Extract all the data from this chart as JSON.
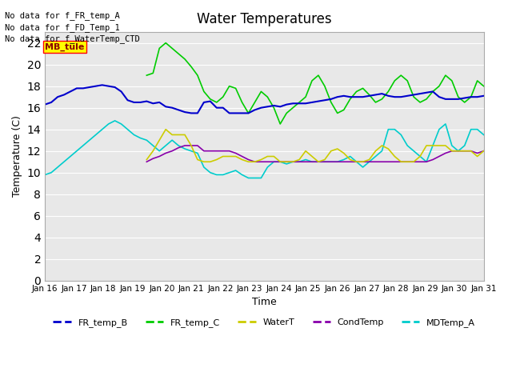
{
  "title": "Water Temperatures",
  "xlabel": "Time",
  "ylabel": "Temperature (C)",
  "ylim": [
    0,
    23
  ],
  "yticks": [
    0,
    2,
    4,
    6,
    8,
    10,
    12,
    14,
    16,
    18,
    20,
    22
  ],
  "xlabels": [
    "Jan 16",
    "Jan 17",
    "Jan 18",
    "Jan 19",
    "Jan 20",
    "Jan 21",
    "Jan 22",
    "Jan 23",
    "Jan 24",
    "Jan 25",
    "Jan 26",
    "Jan 27",
    "Jan 28",
    "Jan 29",
    "Jan 30",
    "Jan 31"
  ],
  "no_data_text": [
    "No data for f_FR_temp_A",
    "No data for f_FD_Temp_1",
    "No data for f_WaterTemp_CTD"
  ],
  "mb_tule_label": "MB_tule",
  "colors": {
    "FR_temp_B": "#0000cc",
    "FR_temp_C": "#00cc00",
    "WaterT": "#cccc00",
    "CondTemp": "#8800aa",
    "MDTemp_A": "#00cccc"
  },
  "FR_temp_B": [
    16.3,
    16.5,
    17.0,
    17.2,
    17.5,
    17.8,
    17.8,
    17.9,
    18.0,
    18.1,
    18.0,
    17.9,
    17.5,
    16.7,
    16.5,
    16.5,
    16.6,
    16.4,
    16.5,
    16.1,
    16.0,
    15.8,
    15.6,
    15.5,
    15.5,
    16.5,
    16.6,
    16.0,
    16.0,
    15.5,
    15.5,
    15.5,
    15.5,
    15.8,
    16.0,
    16.1,
    16.2,
    16.1,
    16.3,
    16.4,
    16.4,
    16.4,
    16.5,
    16.6,
    16.7,
    16.8,
    17.0,
    17.1,
    17.0,
    17.0,
    17.0,
    17.1,
    17.2,
    17.3,
    17.1,
    17.0,
    17.0,
    17.1,
    17.2,
    17.3,
    17.4,
    17.5,
    17.0,
    16.8,
    16.8,
    16.8,
    16.9,
    17.0,
    17.0,
    17.1
  ],
  "FR_temp_C": [
    null,
    null,
    null,
    null,
    null,
    null,
    null,
    null,
    null,
    null,
    null,
    null,
    null,
    null,
    null,
    null,
    19.0,
    19.2,
    21.5,
    22.0,
    21.5,
    21.0,
    20.5,
    19.8,
    19.0,
    17.5,
    16.8,
    16.5,
    17.0,
    18.0,
    17.8,
    16.5,
    15.5,
    16.5,
    17.5,
    17.0,
    16.0,
    14.5,
    15.5,
    16.0,
    16.5,
    17.0,
    18.5,
    19.0,
    18.0,
    16.5,
    15.5,
    15.8,
    16.8,
    17.5,
    17.8,
    17.2,
    16.5,
    16.8,
    17.5,
    18.5,
    19.0,
    18.5,
    17.0,
    16.5,
    16.8,
    17.5,
    18.0,
    19.0,
    18.5,
    17.0,
    16.5,
    17.0,
    18.5,
    18.0
  ],
  "WaterT": [
    null,
    null,
    null,
    null,
    null,
    null,
    null,
    null,
    null,
    null,
    null,
    null,
    null,
    null,
    null,
    null,
    11.2,
    12.0,
    13.0,
    14.0,
    13.5,
    13.5,
    13.5,
    12.5,
    11.2,
    11.0,
    11.0,
    11.2,
    11.5,
    11.5,
    11.5,
    11.2,
    11.0,
    11.0,
    11.2,
    11.5,
    11.5,
    11.0,
    11.0,
    11.0,
    11.2,
    12.0,
    11.5,
    11.0,
    11.2,
    12.0,
    12.2,
    11.8,
    11.2,
    11.0,
    11.0,
    11.2,
    12.0,
    12.5,
    12.2,
    11.5,
    11.0,
    11.0,
    11.0,
    11.5,
    12.5,
    12.5,
    12.5,
    12.5,
    12.0,
    12.0,
    12.0,
    12.0,
    11.5,
    12.0
  ],
  "CondTemp": [
    null,
    null,
    null,
    null,
    null,
    null,
    null,
    null,
    null,
    null,
    null,
    null,
    null,
    null,
    null,
    null,
    11.0,
    11.3,
    11.5,
    11.8,
    12.0,
    12.3,
    12.5,
    12.5,
    12.5,
    12.0,
    12.0,
    12.0,
    12.0,
    12.0,
    11.8,
    11.5,
    11.2,
    11.0,
    11.0,
    11.0,
    11.0,
    11.0,
    11.0,
    11.0,
    11.0,
    11.0,
    11.0,
    11.0,
    11.0,
    11.0,
    11.0,
    11.0,
    11.0,
    11.0,
    11.0,
    11.0,
    11.0,
    11.0,
    11.0,
    11.0,
    11.0,
    11.0,
    11.0,
    11.0,
    11.0,
    11.2,
    11.5,
    11.8,
    12.0,
    12.0,
    12.0,
    12.0,
    11.8,
    12.0
  ],
  "MDTemp_A": [
    9.8,
    10.0,
    10.5,
    11.0,
    11.5,
    12.0,
    12.5,
    13.0,
    13.5,
    14.0,
    14.5,
    14.8,
    14.5,
    14.0,
    13.5,
    13.2,
    13.0,
    12.5,
    12.0,
    12.5,
    13.0,
    12.5,
    12.2,
    12.0,
    11.8,
    10.5,
    10.0,
    9.8,
    9.8,
    10.0,
    10.2,
    9.8,
    9.5,
    9.5,
    9.5,
    10.5,
    11.0,
    11.0,
    10.8,
    11.0,
    11.0,
    11.2,
    11.0,
    11.0,
    11.0,
    11.0,
    11.0,
    11.2,
    11.5,
    11.0,
    10.5,
    11.0,
    11.5,
    12.0,
    14.0,
    14.0,
    13.5,
    12.5,
    12.0,
    11.5,
    11.0,
    12.5,
    14.0,
    14.5,
    12.5,
    12.0,
    12.5,
    14.0,
    14.0,
    13.5
  ]
}
